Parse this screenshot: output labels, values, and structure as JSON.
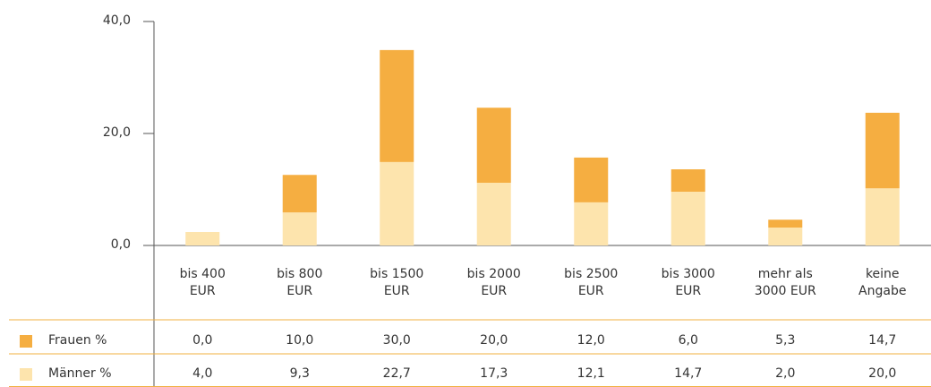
{
  "chart_data": {
    "type": "bar",
    "stacked": true,
    "categories": [
      "bis 400 EUR",
      "bis 800 EUR",
      "bis 1500 EUR",
      "bis 2000 EUR",
      "bis 2500 EUR",
      "bis 3000 EUR",
      "mehr als 3000 EUR",
      "keine Angabe"
    ],
    "series": [
      {
        "name": "Männer %",
        "color": "#fde4ad",
        "values": [
          2.4,
          5.9,
          14.9,
          11.2,
          7.7,
          9.6,
          3.2,
          10.2
        ]
      },
      {
        "name": "Frauen %",
        "color": "#f5ae41",
        "values": [
          0,
          6.7,
          20.0,
          13.4,
          8.0,
          4.0,
          1.4,
          13.5
        ]
      }
    ],
    "ylim": [
      0,
      40
    ],
    "yticks": [
      {
        "value": 0,
        "label": "0,0"
      },
      {
        "value": 20,
        "label": "20,0"
      },
      {
        "value": 40,
        "label": "40,0"
      }
    ],
    "grid": false
  },
  "table": {
    "rows": [
      [
        "0,0",
        "10,0",
        "30,0",
        "20,0",
        "12,0",
        "6,0",
        "5,3",
        "14,7"
      ],
      [
        "4,0",
        "9,3",
        "22,7",
        "17,3",
        "12,1",
        "14,7",
        "2,0",
        "20,0"
      ]
    ],
    "row_series": [
      1,
      0
    ]
  }
}
